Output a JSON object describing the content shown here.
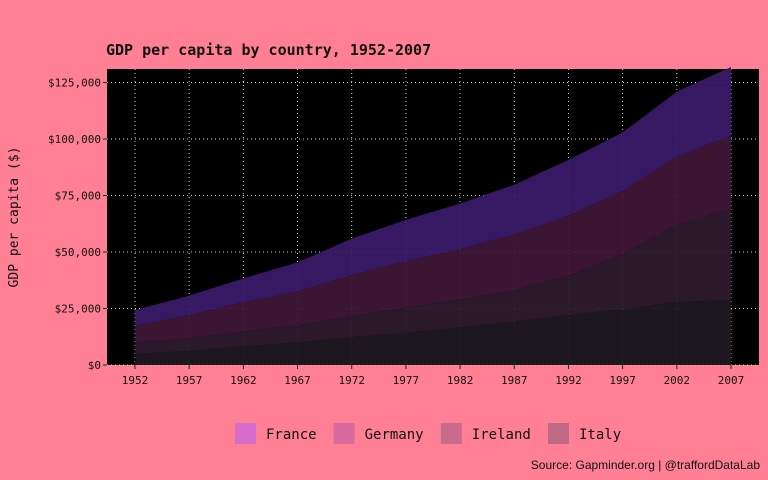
{
  "chart_data": {
    "type": "area",
    "stacked": true,
    "title": "GDP per capita by country, 1952-2007",
    "ylabel": "GDP per capita ($)",
    "xlabel": "",
    "x": [
      1952,
      1957,
      1962,
      1967,
      1972,
      1977,
      1982,
      1987,
      1992,
      1997,
      2002,
      2007
    ],
    "ylim": [
      0,
      131000
    ],
    "yticks": [
      0,
      25000,
      50000,
      75000,
      100000,
      125000
    ],
    "ytick_labels": [
      "$0",
      "$25,000",
      "$50,000",
      "$75,000",
      "$100,000",
      "$125,000"
    ],
    "grid": true,
    "legend_position": "bottom",
    "series": [
      {
        "name": "France",
        "color": "#3b1a6b",
        "legend_color": "#d66ccc",
        "values": [
          7030,
          8663,
          10560,
          13000,
          16107,
          18293,
          20294,
          22066,
          24704,
          25890,
          28926,
          30470
        ]
      },
      {
        "name": "Germany",
        "color": "#421738",
        "legend_color": "#d96aa0",
        "values": [
          7144,
          10188,
          12902,
          14746,
          18016,
          20513,
          22032,
          24639,
          26505,
          27789,
          30036,
          32170
        ]
      },
      {
        "name": "Ireland",
        "color": "#2f1a2e",
        "legend_color": "#c96b8c",
        "values": [
          5211,
          5599,
          6632,
          7656,
          9531,
          11151,
          12618,
          13873,
          17559,
          24522,
          34077,
          40676
        ]
      },
      {
        "name": "Italy",
        "color": "#1f1923",
        "legend_color": "#bf6a84",
        "values": [
          4931,
          6249,
          8244,
          10022,
          12269,
          14256,
          16537,
          19208,
          22014,
          24675,
          27968,
          28570
        ]
      }
    ]
  },
  "caption": "Source: Gapminder.org  |  @traffordDataLab"
}
